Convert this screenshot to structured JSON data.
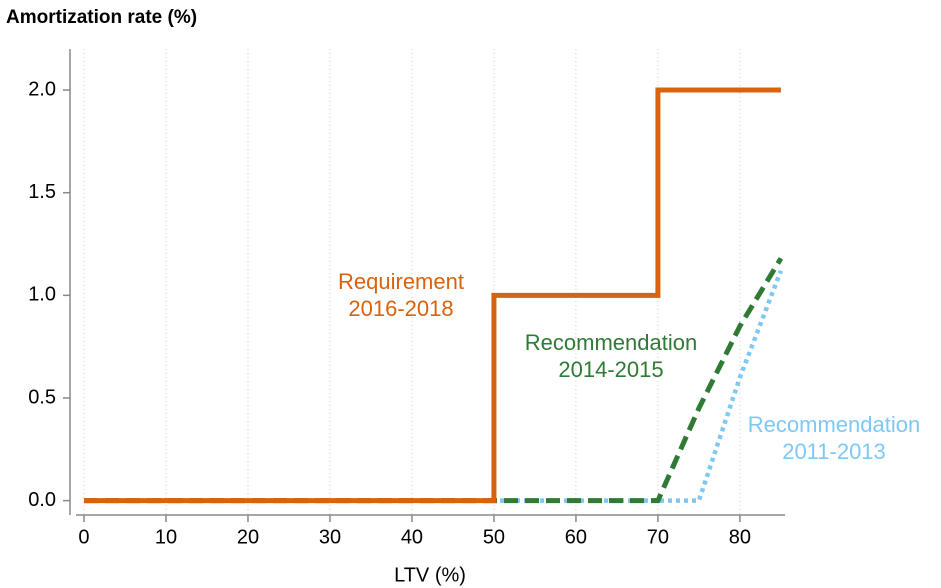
{
  "chart_data": {
    "type": "line",
    "y_label": "Amortization rate (%)",
    "x_label": "LTV (%)",
    "xlim": [
      -1,
      85.5
    ],
    "ylim": [
      -0.07,
      2.2
    ],
    "xticks": [
      0,
      10,
      20,
      30,
      40,
      50,
      60,
      70,
      80
    ],
    "yticks": [
      {
        "value": 0,
        "label": "0.0"
      },
      {
        "value": 0.5,
        "label": "0.5"
      },
      {
        "value": 1,
        "label": "1.0"
      },
      {
        "value": 1.5,
        "label": "1.5"
      },
      {
        "value": 2,
        "label": "2.0"
      }
    ],
    "grid": "x",
    "series": [
      {
        "label_lines": [
          "Recommendation",
          "2011-2013"
        ],
        "color": "#7ec8f5",
        "style": "dotted",
        "x": [
          0,
          75,
          80,
          85
        ],
        "values": [
          0,
          0,
          0.6,
          1.12
        ]
      },
      {
        "label_lines": [
          "Recommendation",
          "2014-2015"
        ],
        "color": "#2f7a34",
        "style": "dashed",
        "x": [
          0,
          70,
          75,
          80,
          85
        ],
        "values": [
          0,
          0,
          0.45,
          0.85,
          1.18
        ]
      },
      {
        "label_lines": [
          "Requirement",
          "2016-2018"
        ],
        "color": "#d9620f",
        "style": "solid",
        "x": [
          0,
          50,
          50,
          70,
          70,
          85
        ],
        "values": [
          0,
          0,
          1,
          1,
          2,
          2
        ]
      }
    ]
  }
}
